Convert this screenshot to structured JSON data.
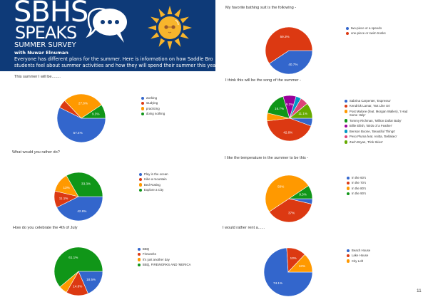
{
  "header": {
    "logo_line1": "SBHS",
    "logo_line2": "SPEAKS",
    "subtitle": "SUMMER SURVEY",
    "byline": "with Nuwar Elnuman",
    "intro_line1": "Everyone has different plans for the summer.  Here is information on how Saddle Bro",
    "intro_line2": "students feel about summer activities and how they will spend their summer this yea"
  },
  "page_number": "11",
  "chart_data": [
    {
      "id": "activity",
      "type": "pie",
      "title": "This summer I will be........",
      "slices": [
        {
          "name": "working",
          "value": 57.4,
          "label": "57.4%",
          "color": "#3366cc"
        },
        {
          "name": "studying",
          "value": 5.6,
          "label": null,
          "color": "#dc3912"
        },
        {
          "name": "practicing",
          "value": 27.8,
          "label": "27.8%",
          "color": "#ff9900"
        },
        {
          "name": "doing nothing",
          "value": 9.3,
          "label": "9.3%",
          "color": "#109618"
        }
      ]
    },
    {
      "id": "rather",
      "type": "pie",
      "title": "What would you rather do?",
      "slices": [
        {
          "name": "Play in the ocean",
          "value": 42.6,
          "label": "42.6%",
          "color": "#3366cc"
        },
        {
          "name": "Hike a mountain",
          "value": 11.1,
          "label": "11.1%",
          "color": "#dc3912"
        },
        {
          "name": "Bed Rotting",
          "value": 13,
          "label": "13%",
          "color": "#ff9900"
        },
        {
          "name": "Explore a City",
          "value": 33.3,
          "label": "33.3%",
          "color": "#109618"
        }
      ]
    },
    {
      "id": "july",
      "type": "pie",
      "title": "How do you celebrate the 4th of July",
      "slices": [
        {
          "name": "BBQ",
          "value": 18.5,
          "label": "18.5%",
          "color": "#3366cc"
        },
        {
          "name": "Fireworks",
          "value": 14.8,
          "label": "14.8%",
          "color": "#dc3912"
        },
        {
          "name": "It's just another day",
          "value": 5.6,
          "label": null,
          "color": "#ff9900"
        },
        {
          "name": "BBQ, FIREWORKS AND 'MERICA",
          "value": 61.1,
          "label": "61.1%",
          "color": "#109618"
        }
      ]
    },
    {
      "id": "bathing",
      "type": "pie",
      "title": "My favorite bathing suit is the following -",
      "slices": [
        {
          "name": "two-piece or a speedo",
          "value": 40.7,
          "label": "40.7%",
          "color": "#3366cc"
        },
        {
          "name": "one-piece or swim trunks",
          "value": 59.3,
          "label": "59.3%",
          "color": "#dc3912"
        }
      ]
    },
    {
      "id": "song",
      "type": "pie",
      "title": "I think this will be the song of the summer -",
      "slices": [
        {
          "name": "Sabrina Carpenter, 'Espresso'",
          "value": 5.6,
          "label": null,
          "color": "#3366cc"
        },
        {
          "name": "Kendrick Lamar, 'Not Like Us'",
          "value": 42.6,
          "label": "42.6%",
          "color": "#dc3912"
        },
        {
          "name": "Post Malone (feat. Morgan Wallen), 'I Had Some Help'",
          "value": 5.6,
          "label": null,
          "color": "#ff9900"
        },
        {
          "name": "Tommy Richman, 'Million Dollar Baby'",
          "value": 16.7,
          "label": "16.7%",
          "color": "#109618"
        },
        {
          "name": "Billie Eilish, 'Birds of a Feather'",
          "value": 9.3,
          "label": "9.3%",
          "color": "#990099"
        },
        {
          "name": "Benson Boone, 'Beautiful Things'",
          "value": 3.7,
          "label": null,
          "color": "#0099c6"
        },
        {
          "name": "Peso Pluma feat. Anitta, 'Bellakeo'",
          "value": 5.6,
          "label": null,
          "color": "#dd4477"
        },
        {
          "name": "Zach Bryan, 'Pink Skies'",
          "value": 11.1,
          "label": "11.1%",
          "color": "#66aa00"
        }
      ]
    },
    {
      "id": "temp",
      "type": "pie",
      "title": "I like the temperature in the summer to be this -",
      "slices": [
        {
          "name": "In the 60's",
          "value": 3.7,
          "label": null,
          "color": "#3366cc"
        },
        {
          "name": "In the 70's",
          "value": 37,
          "label": "37%",
          "color": "#dc3912"
        },
        {
          "name": "In the 80's",
          "value": 50,
          "label": "50%",
          "color": "#ff9900"
        },
        {
          "name": "In the 90's",
          "value": 9.3,
          "label": "9.3%",
          "color": "#109618"
        }
      ]
    },
    {
      "id": "rent",
      "type": "pie",
      "title": "I would rather rent a......",
      "slices": [
        {
          "name": "Beach House",
          "value": 74.1,
          "label": "74.1%",
          "color": "#3366cc"
        },
        {
          "name": "Lake House",
          "value": 13,
          "label": "13%",
          "color": "#dc3912"
        },
        {
          "name": "City Loft",
          "value": 13,
          "label": "13%",
          "color": "#ff9900"
        }
      ]
    }
  ]
}
